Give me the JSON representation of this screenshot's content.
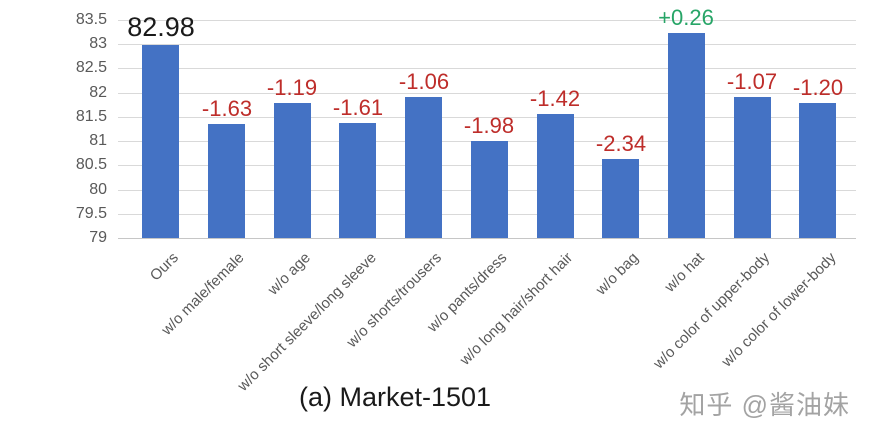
{
  "chart_data": {
    "type": "bar",
    "title": "(a) Market-1501",
    "categories": [
      "Ours",
      "w/o male/female",
      "w/o age",
      "w/o short sleeve/long sleeve",
      "w/o shorts/trousers",
      "w/o pants/dress",
      "w/o long hair/short hair",
      "w/o bag",
      "w/o hat",
      "w/o color of upper-body",
      "w/o color of lower-body"
    ],
    "values": [
      82.98,
      81.35,
      81.79,
      81.37,
      81.92,
      81.0,
      81.56,
      80.64,
      83.24,
      81.91,
      81.78
    ],
    "bar_labels": [
      "82.98",
      "-1.63",
      "-1.19",
      "-1.61",
      "-1.06",
      "-1.98",
      "-1.42",
      "-2.34",
      "+0.26",
      "-1.07",
      "-1.20"
    ],
    "bar_label_types": [
      "base",
      "decrease",
      "decrease",
      "decrease",
      "decrease",
      "decrease",
      "decrease",
      "decrease",
      "increase",
      "decrease",
      "decrease"
    ],
    "y_ticks": [
      "83.5",
      "83",
      "82.5",
      "82",
      "81.5",
      "81",
      "80.5",
      "80",
      "79.5",
      "79"
    ],
    "ylim": [
      79,
      83.5
    ],
    "xlabel": "",
    "ylabel": "",
    "grid": true,
    "legend": false,
    "bar_color": "#4472C4",
    "label_color_base": "#1A1A1A",
    "label_color_decrease": "#BE2D2A",
    "label_color_increase": "#27A567",
    "axis_text_color": "#595959",
    "gridline_color": "#D9D9D9"
  },
  "watermark": {
    "text": "知乎 @酱油妹"
  }
}
